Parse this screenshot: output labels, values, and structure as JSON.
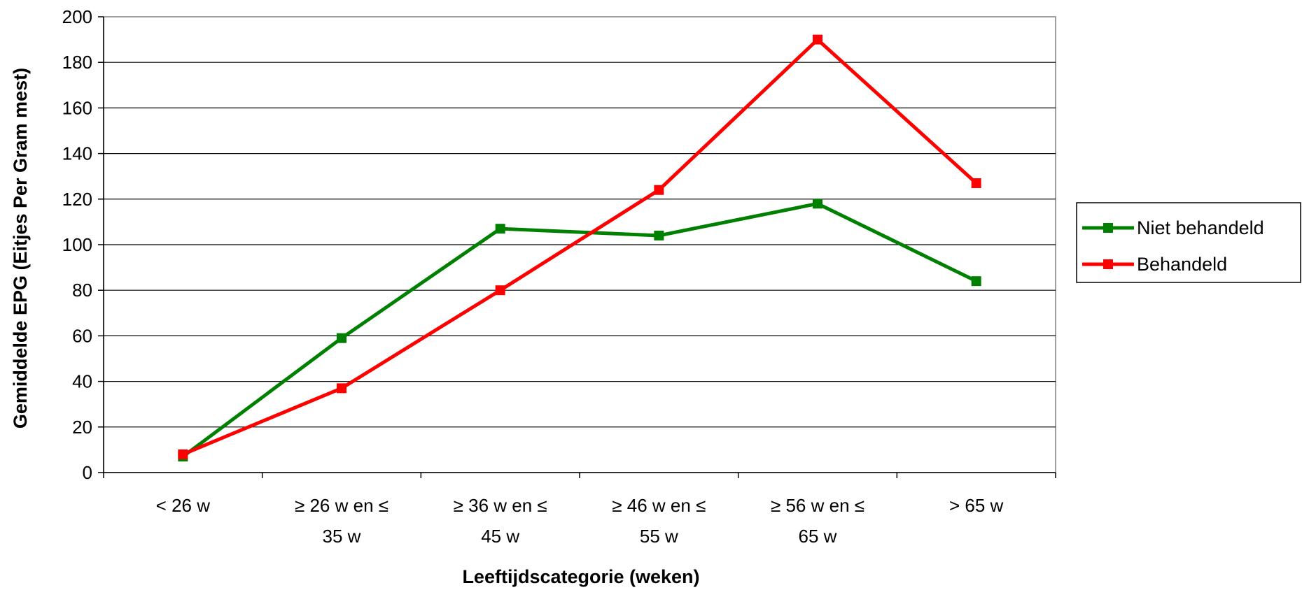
{
  "chart_data": {
    "type": "line",
    "title": "",
    "xlabel": "Leeftijdscategorie (weken)",
    "ylabel": "Gemiddelde EPG (Eitjes Per Gram mest)",
    "categories": [
      [
        "< 26 w"
      ],
      [
        "≥ 26 w en ≤",
        "35 w"
      ],
      [
        "≥ 36 w en ≤",
        "45 w"
      ],
      [
        "≥ 46 w en ≤",
        "55 w"
      ],
      [
        "≥ 56 w en ≤",
        "65 w"
      ],
      [
        "> 65 w"
      ]
    ],
    "ylim": [
      0,
      200
    ],
    "yticks": [
      0,
      20,
      40,
      60,
      80,
      100,
      120,
      140,
      160,
      180,
      200
    ],
    "grid": true,
    "legend": "right",
    "series": [
      {
        "name": "Niet behandeld",
        "color": "#008000",
        "values": [
          7,
          59,
          107,
          104,
          118,
          84
        ]
      },
      {
        "name": "Behandeld",
        "color": "#ff0000",
        "values": [
          8,
          37,
          80,
          124,
          190,
          127
        ]
      }
    ]
  }
}
